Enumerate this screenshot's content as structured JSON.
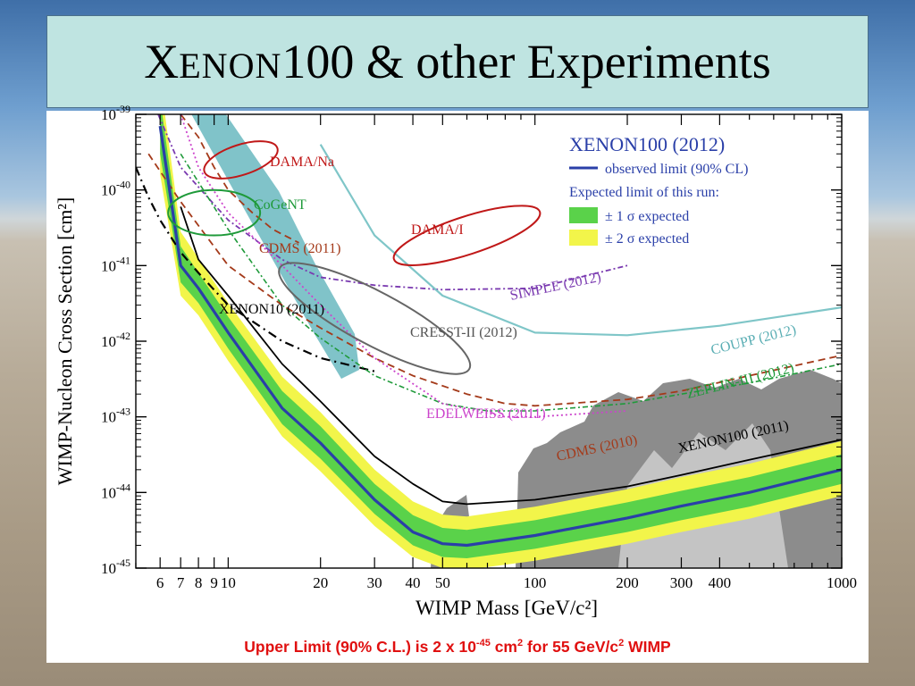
{
  "slide": {
    "title_first_letter": "X",
    "title_small_caps": "ENON",
    "title_rest": "100 & other Experiments"
  },
  "caption": {
    "prefix": "Upper Limit (90% C.L.) is 2 x 10",
    "exponent": "-45",
    "unit_cm": " cm",
    "unit_cm_exp": "2",
    "middle": "  for 55 GeV/c",
    "unit_c_exp": "2",
    "suffix": " WIMP"
  },
  "colors": {
    "observed": "#2a3fa8",
    "band1": "#5ad24a",
    "band2": "#f2f54a",
    "dama": "#c01818",
    "cogent": "#1f9a3a",
    "cdms": "#a43a1a",
    "simple": "#7a3ab0",
    "cresst": "#666666",
    "coupp": "#7fc6c8",
    "zeplin": "#1f9a3a",
    "edelweiss": "#cc44cc",
    "xenon10": "#000000",
    "xenon100_2011": "#000000",
    "shade_dark": "#8c8c8c",
    "shade_light": "#c4c4c4"
  },
  "chart_data": {
    "type": "line",
    "xlabel": "WIMP Mass [GeV/c²]",
    "ylabel": "WIMP-Nucleon Cross Section [cm²]",
    "x_scale": "log",
    "y_scale": "log",
    "xlim": [
      5,
      1000
    ],
    "ylim": [
      1e-45,
      1e-39
    ],
    "x_ticks": [
      6,
      7,
      8,
      9,
      10,
      20,
      30,
      40,
      50,
      100,
      200,
      300,
      400,
      1000
    ],
    "x_tick_labels": [
      "6",
      "7",
      "8",
      "9",
      "10",
      "20",
      "30",
      "40",
      "50",
      "100",
      "200",
      "300",
      "400",
      "1000"
    ],
    "y_ticks": [
      1e-45,
      1e-44,
      1e-43,
      1e-42,
      1e-41,
      1e-40,
      1e-39
    ],
    "y_tick_base": "10",
    "y_tick_exponents": [
      "-45",
      "-44",
      "-43",
      "-42",
      "-41",
      "-40",
      "-39"
    ],
    "legend": {
      "title": "XENON100 (2012)",
      "observed_label": "observed limit (90% CL)",
      "expected_header": "Expected limit of this run:",
      "band1_label": "± 1 σ expected",
      "band2_label": "± 2 σ expected",
      "position": "top-right"
    },
    "labels": {
      "dama_na": "DAMA/Na",
      "dama_i": "DAMA/I",
      "cogent": "CoGeNT",
      "cdms_2011": "CDMS (2011)",
      "simple": "SIMPLE (2012)",
      "xenon10": "XENON10 (2011)",
      "cresst": "CRESST-II (2012)",
      "coupp": "COUPP (2012)",
      "zeplin": "ZEPLIN-III (2012)",
      "edelweiss": "EDELWEISS (2011)",
      "cdms_2010": "CDMS (2010)",
      "xenon100_2011": "XENON100 (2011)"
    },
    "series": [
      {
        "name": "observed limit (90% CL)",
        "style": "observed",
        "x": [
          6,
          7,
          8,
          10,
          15,
          20,
          30,
          40,
          50,
          60,
          100,
          200,
          300,
          500,
          1000
        ],
        "y": [
          7e-40,
          1e-41,
          5e-42,
          1.3e-42,
          1.3e-43,
          4.5e-44,
          8e-45,
          3e-45,
          2.1e-45,
          2e-45,
          2.7e-45,
          4.6e-45,
          6.6e-45,
          1e-44,
          2e-44
        ]
      },
      {
        "name": "± 1 σ expected",
        "style": "band1",
        "x": [
          6,
          7,
          8,
          10,
          15,
          20,
          30,
          40,
          50,
          60,
          100,
          200,
          300,
          500,
          1000
        ],
        "y_low": [
          3e-40,
          6e-42,
          3.2e-42,
          8e-43,
          8e-44,
          2.8e-44,
          5.2e-45,
          2e-45,
          1.4e-45,
          1.35e-45,
          1.8e-45,
          3e-45,
          4.3e-45,
          6.5e-45,
          1.3e-44
        ],
        "y_high": [
          1.6e-39,
          1.8e-41,
          8e-42,
          2.1e-42,
          2.2e-43,
          7.5e-44,
          1.3e-44,
          5e-45,
          3.4e-45,
          3.2e-45,
          4.3e-45,
          7.4e-45,
          1.05e-44,
          1.6e-44,
          3.2e-44
        ]
      },
      {
        "name": "± 2 σ expected",
        "style": "band2",
        "x": [
          6,
          7,
          8,
          10,
          15,
          20,
          30,
          40,
          50,
          60,
          100,
          200,
          300,
          500,
          1000
        ],
        "y_low": [
          1.6e-40,
          4e-42,
          2.2e-42,
          5.5e-43,
          5.5e-44,
          1.9e-44,
          3.6e-45,
          1.4e-45,
          1e-45,
          9.5e-46,
          1.25e-45,
          2.1e-45,
          3e-45,
          4.5e-45,
          9e-45
        ],
        "y_high": [
          3e-39,
          2.8e-41,
          1.25e-41,
          3.2e-42,
          3.4e-43,
          1.15e-43,
          2e-44,
          7.6e-45,
          5.1e-45,
          4.8e-45,
          6.5e-45,
          1.1e-44,
          1.6e-44,
          2.4e-44,
          4.8e-44
        ]
      },
      {
        "name": "XENON100 (2011)",
        "style": "xenon100_2011",
        "x": [
          7,
          8,
          10,
          15,
          20,
          30,
          40,
          50,
          60,
          100,
          200,
          300,
          500,
          1000
        ],
        "y": [
          6e-41,
          1.2e-41,
          4e-42,
          5e-43,
          1.6e-43,
          3e-44,
          1.3e-44,
          7.6e-45,
          7e-45,
          8e-45,
          1.2e-44,
          1.7e-44,
          2.7e-44,
          5e-44
        ]
      },
      {
        "name": "CDMS (2010)",
        "style": "cdms",
        "x": [
          5.5,
          7,
          10,
          15,
          20,
          30,
          40,
          60,
          80,
          100,
          200,
          300,
          500,
          1000
        ],
        "y": [
          3e-40,
          7e-41,
          1e-41,
          3e-42,
          1.5e-42,
          6e-43,
          3.5e-43,
          2e-43,
          1.5e-43,
          1.4e-43,
          1.7e-43,
          2.2e-43,
          3.5e-43,
          6.5e-43
        ]
      },
      {
        "name": "CDMS (2011)",
        "style": "cdms",
        "x": [
          7,
          8,
          9,
          10,
          12,
          14,
          17
        ],
        "y": [
          1e-39,
          5e-40,
          2e-40,
          1e-40,
          5e-41,
          3e-41,
          2e-41
        ]
      },
      {
        "name": "ZEPLIN-III (2012)",
        "style": "zeplin",
        "x": [
          7,
          10,
          15,
          20,
          30,
          50,
          70,
          100,
          200,
          300,
          500,
          1000
        ],
        "y": [
          3e-40,
          3e-41,
          3e-42,
          1.1e-42,
          3.5e-43,
          1.5e-43,
          1.2e-43,
          1.2e-43,
          1.5e-43,
          2e-43,
          2.8e-43,
          5e-43
        ]
      },
      {
        "name": "COUPP (2012)",
        "style": "coupp",
        "x": [
          20,
          30,
          50,
          100,
          200,
          400,
          1000
        ],
        "y": [
          4e-40,
          2.5e-41,
          4e-42,
          1.3e-42,
          1.2e-42,
          1.6e-42,
          2.8e-42
        ]
      },
      {
        "name": "SIMPLE (2012)",
        "style": "simple",
        "x": [
          5.5,
          7,
          10,
          15,
          20,
          30,
          50,
          100,
          200
        ],
        "y": [
          2e-39,
          2e-40,
          4e-41,
          1.2e-41,
          7e-42,
          5.5e-42,
          4.8e-42,
          5e-42,
          1e-41
        ]
      },
      {
        "name": "EDELWEISS (2011)",
        "style": "edelweiss",
        "x": [
          7,
          8,
          10,
          15,
          20,
          30,
          50,
          80,
          100,
          200
        ],
        "y": [
          1e-39,
          2e-40,
          5e-41,
          1e-41,
          3e-42,
          6e-43,
          1.5e-43,
          1e-43,
          1e-43,
          1.2e-43
        ]
      },
      {
        "name": "XENON10 (2011)",
        "style": "xenon10",
        "x": [
          5,
          5.5,
          6,
          7,
          8,
          10,
          15,
          20,
          30
        ],
        "y": [
          2e-40,
          8e-41,
          4e-41,
          1.5e-41,
          8e-42,
          3e-42,
          1e-42,
          6e-43,
          4e-43
        ]
      }
    ],
    "regions": [
      {
        "name": "DAMA/Na",
        "style": "dama",
        "center": [
          11,
          2.5e-40
        ],
        "width_decades": 0.25,
        "height_decades": 0.4
      },
      {
        "name": "DAMA/I",
        "style": "dama",
        "center": [
          60,
          2.5e-41
        ],
        "width_decades": 0.5,
        "height_decades": 0.5
      },
      {
        "name": "CRESST-II (2012)",
        "style": "cresst",
        "center": [
          30,
          2e-42
        ],
        "width_decades": 0.7,
        "height_decades": 0.7
      },
      {
        "name": "CoGeNT",
        "style": "cogent",
        "center": [
          9,
          5e-41
        ],
        "width_decades": 0.3,
        "height_decades": 0.6
      }
    ]
  }
}
